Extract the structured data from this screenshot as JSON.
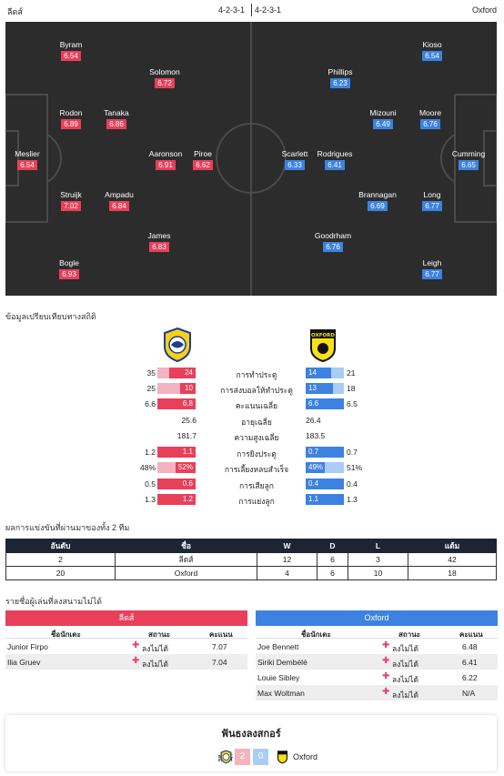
{
  "header": {
    "home_name": "ลีดส์",
    "home_formation": "4-2-3-1",
    "away_formation": "4-2-3-1",
    "away_name": "Oxford"
  },
  "home_players": [
    {
      "name": "Byram",
      "rating": "6.54"
    },
    {
      "name": "Solomon",
      "rating": "6.72"
    },
    {
      "name": "Rodon",
      "rating": "6.89"
    },
    {
      "name": "Tanaka",
      "rating": "6.86"
    },
    {
      "name": "Meslier",
      "rating": "6.54"
    },
    {
      "name": "Aaronson",
      "rating": "6.91"
    },
    {
      "name": "Piroe",
      "rating": "6.62"
    },
    {
      "name": "Struijk",
      "rating": "7.02"
    },
    {
      "name": "Ampadu",
      "rating": "6.84"
    },
    {
      "name": "James",
      "rating": "6.83"
    },
    {
      "name": "Bogle",
      "rating": "6.93"
    }
  ],
  "away_players": [
    {
      "name": "Kioso",
      "rating": "6.54"
    },
    {
      "name": "Phillips",
      "rating": "6.23"
    },
    {
      "name": "Mizouni",
      "rating": "6.49"
    },
    {
      "name": "Moore",
      "rating": "6.76"
    },
    {
      "name": "Scarlett",
      "rating": "6.33"
    },
    {
      "name": "Rodrigues",
      "rating": "6.41"
    },
    {
      "name": "Cumming",
      "rating": "6.65"
    },
    {
      "name": "Brannagan",
      "rating": "6.69"
    },
    {
      "name": "Long",
      "rating": "6.77"
    },
    {
      "name": "Goodrham",
      "rating": "6.76"
    },
    {
      "name": "Leigh",
      "rating": "6.77"
    }
  ],
  "stats": {
    "title": "ข้อมูลเปรียบเทียบทางสถิติ",
    "rows": [
      {
        "label": "การทำประตู",
        "home_total": "35",
        "home_bar": "24",
        "home_frac": 0.69,
        "away_bar": "14",
        "away_frac": 0.67,
        "away_total": "21"
      },
      {
        "label": "การส่งบอลให้ทำประตู",
        "home_total": "25",
        "home_bar": "10",
        "home_frac": 0.4,
        "away_bar": "13",
        "away_frac": 0.72,
        "away_total": "18"
      },
      {
        "label": "คะแนนเฉลี่ย",
        "home_total": "6.6",
        "home_bar": "6.8",
        "home_frac": 1.0,
        "away_bar": "6.6",
        "away_frac": 1.0,
        "away_total": "6.5"
      },
      {
        "label": "อายุเฉลี่ย",
        "home_plain": "25.6",
        "away_plain": "26.4"
      },
      {
        "label": "ความสูงเฉลี่ย",
        "home_plain": "181.7",
        "away_plain": "183.5"
      },
      {
        "label": "การยิงประตู",
        "home_total": "1.2",
        "home_bar": "1.1",
        "home_frac": 1.0,
        "away_bar": "0.7",
        "away_frac": 1.0,
        "away_total": "0.7"
      },
      {
        "label": "การเลี้ยงหลบสำเร็จ",
        "home_total": "48%",
        "home_bar": "52%",
        "home_frac": 0.52,
        "away_bar": "49%",
        "away_frac": 0.49,
        "away_total": "51%"
      },
      {
        "label": "การเสียลูก",
        "home_total": "0.5",
        "home_bar": "0.6",
        "home_frac": 1.0,
        "away_bar": "0.4",
        "away_frac": 1.0,
        "away_total": "0.4"
      },
      {
        "label": "การแย่งลูก",
        "home_total": "1.3",
        "home_bar": "1.2",
        "home_frac": 1.0,
        "away_bar": "1.1",
        "away_frac": 1.0,
        "away_total": "1.3"
      }
    ]
  },
  "standings": {
    "title": "ผลการแข่งขันที่ผ่านมาของทั้ง 2 ทีม",
    "headers": [
      "อันดับ",
      "ชื่อ",
      "W",
      "D",
      "L",
      "แต้ม"
    ],
    "rows": [
      [
        "2",
        "ลีดส์",
        "12",
        "6",
        "3",
        "42"
      ],
      [
        "20",
        "Oxford",
        "4",
        "6",
        "10",
        "18"
      ]
    ]
  },
  "absent": {
    "title": "รายชื่อผู้เล่นที่ลงสนามไม่ได้",
    "col_player": "ชื่อนักเตะ",
    "col_status": "สถานะ",
    "col_score": "คะแนน",
    "home": {
      "team": "ลีดส์",
      "players": [
        {
          "name": "Junior Firpo",
          "status": "ลงไม่ได้",
          "score": "7.07"
        },
        {
          "name": "Ilia Gruev",
          "status": "ลงไม่ได้",
          "score": "7.04"
        }
      ]
    },
    "away": {
      "team": "Oxford",
      "players": [
        {
          "name": "Joe Bennett",
          "status": "ลงไม่ได้",
          "score": "6.48"
        },
        {
          "name": "Siriki Dembélé",
          "status": "ลงไม่ได้",
          "score": "6.41"
        },
        {
          "name": "Louie Sibley",
          "status": "ลงไม่ได้",
          "score": "6.22"
        },
        {
          "name": "Max Woltman",
          "status": "ลงไม่ได้",
          "score": "N/A"
        }
      ]
    }
  },
  "prediction": {
    "title": "ฟันธงลงสกอร์",
    "home_name": "ลีดส์",
    "home_score": "2",
    "away_score": "0",
    "away_name": "Oxford"
  },
  "colors": {
    "home": "#e8405a",
    "away": "#3d82e0",
    "pitch": "#2c2c2c",
    "table_header": "#1d2433"
  },
  "icons": {
    "home_logo": "leeds-crest-icon",
    "away_logo": "oxford-crest-icon",
    "absent_marker": "cross-icon"
  }
}
